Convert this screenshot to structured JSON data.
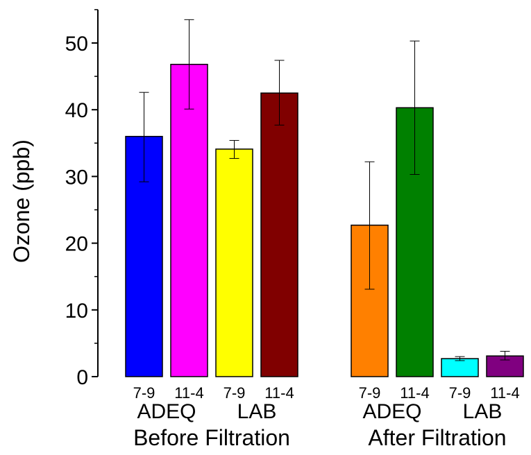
{
  "chart_data": {
    "type": "bar",
    "title": "",
    "ylabel": "Ozone (ppb)",
    "xlabel": "",
    "ylim": [
      0,
      55
    ],
    "yticks": [
      0,
      10,
      20,
      30,
      40,
      50
    ],
    "ytick_labels": [
      "0",
      "10",
      "20",
      "30",
      "40",
      "50"
    ],
    "grid": false,
    "sections": [
      {
        "label": "Before Filtration",
        "groups": [
          {
            "label": "ADEQ",
            "bars": [
              {
                "label": "7-9",
                "value": 36.0,
                "err_low": 29.2,
                "err_high": 42.6,
                "color": "#0000ff"
              },
              {
                "label": "11-4",
                "value": 46.8,
                "err_low": 40.1,
                "err_high": 53.5,
                "color": "#ff00ff"
              }
            ]
          },
          {
            "label": "LAB",
            "bars": [
              {
                "label": "7-9",
                "value": 34.1,
                "err_low": 32.7,
                "err_high": 35.4,
                "color": "#ffff00"
              },
              {
                "label": "11-4",
                "value": 42.5,
                "err_low": 37.7,
                "err_high": 47.4,
                "color": "#800000"
              }
            ]
          }
        ]
      },
      {
        "label": "After Filtration",
        "groups": [
          {
            "label": "ADEQ",
            "bars": [
              {
                "label": "7-9",
                "value": 22.7,
                "err_low": 13.1,
                "err_high": 32.2,
                "color": "#ff8000"
              },
              {
                "label": "11-4",
                "value": 40.3,
                "err_low": 30.3,
                "err_high": 50.3,
                "color": "#008000"
              }
            ]
          },
          {
            "label": "LAB",
            "bars": [
              {
                "label": "7-9",
                "value": 2.7,
                "err_low": 2.4,
                "err_high": 3.0,
                "color": "#00ffff"
              },
              {
                "label": "11-4",
                "value": 3.1,
                "err_low": 2.5,
                "err_high": 3.8,
                "color": "#800080"
              }
            ]
          }
        ]
      }
    ]
  }
}
